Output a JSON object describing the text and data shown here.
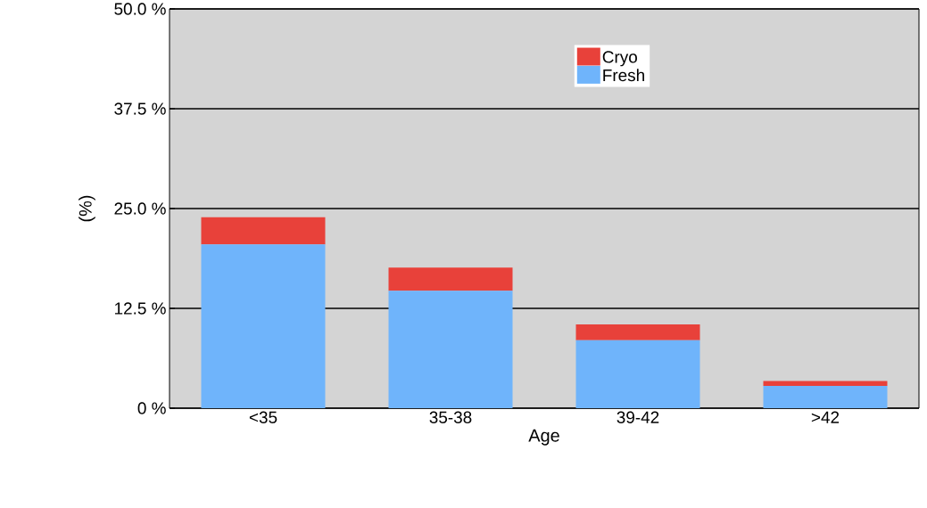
{
  "chart_data": {
    "type": "bar",
    "stacked": true,
    "xlabel": "Age",
    "ylabel": "(%)",
    "categories": [
      "<35",
      "35-38",
      "39-42",
      ">42"
    ],
    "series": [
      {
        "name": "Fresh",
        "color": "#6fb4fb",
        "values": [
          20.5,
          14.7,
          8.5,
          2.8
        ]
      },
      {
        "name": "Cryo",
        "color": "#e8413a",
        "values": [
          3.4,
          2.9,
          2.0,
          0.6
        ]
      }
    ],
    "ylim": [
      0,
      50
    ],
    "yticks": [
      {
        "value": 0,
        "label": "0 %"
      },
      {
        "value": 12.5,
        "label": "12.5 %"
      },
      {
        "value": 25,
        "label": "25.0 %"
      },
      {
        "value": 37.5,
        "label": "37.5 %"
      },
      {
        "value": 50,
        "label": "50.0 %"
      }
    ],
    "grid": "y",
    "legend": "top right"
  }
}
